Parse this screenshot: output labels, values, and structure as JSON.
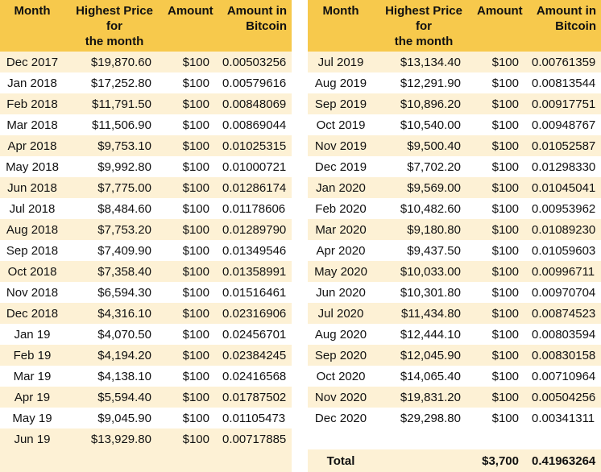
{
  "headers": {
    "month": "Month",
    "price_line1": "Highest Price for",
    "price_line2": "the month",
    "amount": "Amount",
    "btc_line1": "Amount in",
    "btc_line2": "Bitcoin"
  },
  "left_rows": [
    {
      "month": "Dec 2017",
      "price": "$19,870.60",
      "amount": "$100",
      "btc": "0.00503256"
    },
    {
      "month": "Jan 2018",
      "price": "$17,252.80",
      "amount": "$100",
      "btc": "0.00579616"
    },
    {
      "month": "Feb 2018",
      "price": "$11,791.50",
      "amount": "$100",
      "btc": "0.00848069"
    },
    {
      "month": "Mar 2018",
      "price": "$11,506.90",
      "amount": "$100",
      "btc": "0.00869044"
    },
    {
      "month": "Apr 2018",
      "price": "$9,753.10",
      "amount": "$100",
      "btc": "0.01025315"
    },
    {
      "month": "May 2018",
      "price": "$9,992.80",
      "amount": "$100",
      "btc": "0.01000721"
    },
    {
      "month": "Jun 2018",
      "price": "$7,775.00",
      "amount": "$100",
      "btc": "0.01286174"
    },
    {
      "month": "Jul 2018",
      "price": "$8,484.60",
      "amount": "$100",
      "btc": "0.01178606"
    },
    {
      "month": "Aug 2018",
      "price": "$7,753.20",
      "amount": "$100",
      "btc": "0.01289790"
    },
    {
      "month": "Sep 2018",
      "price": "$7,409.90",
      "amount": "$100",
      "btc": "0.01349546"
    },
    {
      "month": "Oct 2018",
      "price": "$7,358.40",
      "amount": "$100",
      "btc": "0.01358991"
    },
    {
      "month": "Nov 2018",
      "price": "$6,594.30",
      "amount": "$100",
      "btc": "0.01516461"
    },
    {
      "month": "Dec 2018",
      "price": "$4,316.10",
      "amount": "$100",
      "btc": "0.02316906"
    },
    {
      "month": "Jan 19",
      "price": "$4,070.50",
      "amount": "$100",
      "btc": "0.02456701"
    },
    {
      "month": "Feb 19",
      "price": "$4,194.20",
      "amount": "$100",
      "btc": "0.02384245"
    },
    {
      "month": "Mar 19",
      "price": "$4,138.10",
      "amount": "$100",
      "btc": "0.02416568"
    },
    {
      "month": "Apr 19",
      "price": "$5,594.40",
      "amount": "$100",
      "btc": "0.01787502"
    },
    {
      "month": "May 19",
      "price": "$9,045.90",
      "amount": "$100",
      "btc": "0.01105473"
    },
    {
      "month": "Jun 19",
      "price": "$13,929.80",
      "amount": "$100",
      "btc": "0.00717885"
    }
  ],
  "right_rows": [
    {
      "month": "Jul 2019",
      "price": "$13,134.40",
      "amount": "$100",
      "btc": "0.00761359"
    },
    {
      "month": "Aug 2019",
      "price": "$12,291.90",
      "amount": "$100",
      "btc": "0.00813544"
    },
    {
      "month": "Sep 2019",
      "price": "$10,896.20",
      "amount": "$100",
      "btc": "0.00917751"
    },
    {
      "month": "Oct 2019",
      "price": "$10,540.00",
      "amount": "$100",
      "btc": "0.00948767"
    },
    {
      "month": "Nov 2019",
      "price": "$9,500.40",
      "amount": "$100",
      "btc": "0.01052587"
    },
    {
      "month": "Dec 2019",
      "price": "$7,702.20",
      "amount": "$100",
      "btc": "0.01298330"
    },
    {
      "month": "Jan 2020",
      "price": "$9,569.00",
      "amount": "$100",
      "btc": "0.01045041"
    },
    {
      "month": "Feb 2020",
      "price": "$10,482.60",
      "amount": "$100",
      "btc": "0.00953962"
    },
    {
      "month": "Mar 2020",
      "price": "$9,180.80",
      "amount": "$100",
      "btc": "0.01089230"
    },
    {
      "month": "Apr 2020",
      "price": "$9,437.50",
      "amount": "$100",
      "btc": "0.01059603"
    },
    {
      "month": "May 2020",
      "price": "$10,033.00",
      "amount": "$100",
      "btc": "0.00996711"
    },
    {
      "month": "Jun 2020",
      "price": "$10,301.80",
      "amount": "$100",
      "btc": "0.00970704"
    },
    {
      "month": "Jul 2020",
      "price": "$11,434.80",
      "amount": "$100",
      "btc": "0.00874523"
    },
    {
      "month": "Aug 2020",
      "price": "$12,444.10",
      "amount": "$100",
      "btc": "0.00803594"
    },
    {
      "month": "Sep 2020",
      "price": "$12,045.90",
      "amount": "$100",
      "btc": "0.00830158"
    },
    {
      "month": "Oct 2020",
      "price": "$14,065.40",
      "amount": "$100",
      "btc": "0.00710964"
    },
    {
      "month": "Nov 2020",
      "price": "$19,831.20",
      "amount": "$100",
      "btc": "0.00504256"
    },
    {
      "month": "Dec 2020",
      "price": "$29,298.80",
      "amount": "$100",
      "btc": "0.00341311"
    }
  ],
  "total": {
    "label": "Total",
    "amount": "$3,700",
    "btc": "0.41963264"
  }
}
